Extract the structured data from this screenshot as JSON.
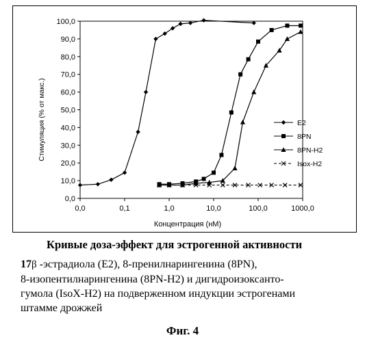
{
  "chart_data": {
    "type": "line",
    "xscale": "log",
    "xlim": [
      0.01,
      1000
    ],
    "ylim": [
      0,
      100
    ],
    "ylabel": "Стимуляция (% от макс.)",
    "xlabel": "Концентрация (нМ)",
    "x_ticks": [
      "0,0",
      "0,1",
      "1,0",
      "10,0",
      "100,0",
      "1000,0"
    ],
    "y_ticks": [
      "0,0",
      "10,0",
      "20,0",
      "30,0",
      "40,0",
      "50,0",
      "60,0",
      "70,0",
      "80,0",
      "90,0",
      "100,0"
    ],
    "legend_position": "right",
    "series": [
      {
        "name": "E2",
        "marker": "diamond",
        "x": [
          0.01,
          0.025,
          0.05,
          0.1,
          0.2,
          0.3,
          0.5,
          0.8,
          1.2,
          1.8,
          3.0,
          6.0,
          80
        ],
        "y": [
          7.5,
          8.0,
          10.5,
          14.5,
          37.5,
          60.0,
          90.0,
          93.0,
          96.0,
          98.5,
          99.0,
          100.5,
          99.0
        ]
      },
      {
        "name": "8PN",
        "marker": "square",
        "x": [
          0.6,
          1.0,
          2.0,
          4.0,
          6.0,
          10.0,
          15.0,
          25.0,
          40.0,
          60.0,
          100.0,
          200.0,
          450.0,
          900.0
        ],
        "y": [
          8.0,
          8.0,
          8.5,
          9.5,
          11.0,
          14.5,
          24.5,
          48.5,
          70.0,
          78.5,
          88.5,
          95.0,
          97.5,
          97.5
        ]
      },
      {
        "name": "8PN-H2",
        "marker": "triangle",
        "x": [
          0.6,
          1.0,
          2.0,
          4.0,
          8.0,
          16.0,
          30.0,
          45.0,
          80.0,
          150.0,
          300.0,
          450.0,
          900.0
        ],
        "y": [
          7.5,
          7.5,
          7.5,
          8.5,
          9.0,
          10.0,
          17.0,
          43.0,
          60.0,
          75.0,
          83.5,
          90.0,
          94.0
        ]
      },
      {
        "name": "Isox-H2",
        "marker": "x",
        "x": [
          0.6,
          1.0,
          2.0,
          4.0,
          8.0,
          16.0,
          30.0,
          60.0,
          110.0,
          200.0,
          400.0,
          900.0
        ],
        "y": [
          7.5,
          7.5,
          7.5,
          7.5,
          7.5,
          7.5,
          7.5,
          7.5,
          7.5,
          7.5,
          7.5,
          7.5
        ]
      }
    ]
  },
  "caption": {
    "title": "Кривые доза-эффект для эстрогенной активности",
    "line1_prefix": "17",
    "line1_beta": "β",
    "line1_rest": " -эстрадиола (E2), 8-пренилнарингенина (8PN),",
    "line2": "8-изопентилнарингенина (8PN-H2) и дигидроизоксанто-",
    "line3": "гумола (IsoX-H2) на подверженном индукции эстрогенами",
    "line4": "штамме дрожжей"
  },
  "figure_label": "Фиг. 4"
}
